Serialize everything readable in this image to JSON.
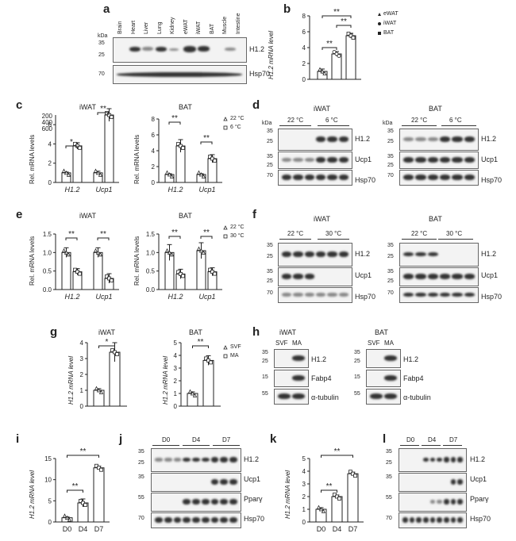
{
  "panels": {
    "a": {
      "label": "a",
      "tissues": [
        "Brain",
        "Heart",
        "Liver",
        "Lung",
        "Kidney",
        "eWAT",
        "iWAT",
        "BAT",
        "Muscle",
        "Intestine"
      ],
      "kda": "kDa",
      "markers": [
        "35",
        "25",
        "70"
      ],
      "rows": [
        "H1.2",
        "Hsp70"
      ]
    },
    "b": {
      "label": "b",
      "ylabel": "H1.2 mRNA level",
      "ticks": [
        "0",
        "2",
        "4",
        "6",
        "8"
      ],
      "legend": [
        "eWAT",
        "iWAT",
        "BAT"
      ],
      "sig": [
        "**",
        "**",
        "**"
      ]
    },
    "c": {
      "label": "c",
      "iwat": "iWAT",
      "bat": "BAT",
      "ylabel": "Rel. mRNA levels",
      "iwat_ticks": [
        "0",
        "2",
        "4",
        "6",
        "200",
        "400",
        "600"
      ],
      "bat_ticks": [
        "0",
        "2",
        "4",
        "6",
        "8"
      ],
      "x": [
        "H1.2",
        "Ucp1"
      ],
      "legend": [
        "22 °C",
        "6 °C"
      ],
      "sig_iwat": [
        "*",
        "**"
      ],
      "sig_bat": [
        "**",
        "**"
      ]
    },
    "d": {
      "label": "d",
      "iwat": "iWAT",
      "bat": "BAT",
      "kda": "kDa",
      "cond": [
        "22 °C",
        "6 °C"
      ],
      "rows": [
        "H1.2",
        "Ucp1",
        "Hsp70"
      ],
      "markers": [
        "35",
        "25",
        "35",
        "25",
        "70"
      ]
    },
    "e": {
      "label": "e",
      "iwat": "iWAT",
      "bat": "BAT",
      "ylabel": "Rel. mRNA levels",
      "ticks": [
        "0.0",
        "0.5",
        "1.0",
        "1.5"
      ],
      "x": [
        "H1.2",
        "Ucp1"
      ],
      "legend": [
        "22 °C",
        "30 °C"
      ],
      "sig": [
        "**",
        "**"
      ]
    },
    "f": {
      "label": "f",
      "iwat": "iWAT",
      "bat": "BAT",
      "cond": [
        "22 °C",
        "30 °C"
      ],
      "rows": [
        "H1.2",
        "Ucp1",
        "Hsp70"
      ],
      "markers": [
        "35",
        "25",
        "35",
        "25",
        "70"
      ]
    },
    "g": {
      "label": "g",
      "iwat": "iWAT",
      "bat": "BAT",
      "ylabel": "H1.2 mRNA level",
      "iwat_ticks": [
        "0",
        "1",
        "2",
        "3",
        "4"
      ],
      "bat_ticks": [
        "0",
        "1",
        "2",
        "3",
        "4",
        "5"
      ],
      "legend": [
        "SVF",
        "MA"
      ],
      "sig_iwat": "*",
      "sig_bat": "**"
    },
    "h": {
      "label": "h",
      "iwat": "iWAT",
      "bat": "BAT",
      "cols": [
        "SVF",
        "MA"
      ],
      "rows": [
        "H1.2",
        "Fabp4",
        "α-tubulin"
      ],
      "markers": [
        "35",
        "25",
        "15",
        "55"
      ]
    },
    "i": {
      "label": "i",
      "ylabel": "H1.2 mRNA level",
      "ticks": [
        "0",
        "5",
        "10",
        "15"
      ],
      "x": [
        "D0",
        "D4",
        "D7"
      ],
      "sig": [
        "**",
        "**"
      ]
    },
    "j": {
      "label": "j",
      "days": [
        "D0",
        "D4",
        "D7"
      ],
      "rows": [
        "H1.2",
        "Ucp1",
        "Pparγ",
        "Hsp70"
      ],
      "markers": [
        "35",
        "25",
        "35",
        "55",
        "70"
      ]
    },
    "k": {
      "label": "k",
      "ylabel": "H1.2 mRNA level",
      "ticks": [
        "0",
        "1",
        "2",
        "3",
        "4",
        "5"
      ],
      "x": [
        "D0",
        "D4",
        "D7"
      ],
      "sig": [
        "**",
        "**"
      ]
    },
    "l": {
      "label": "l",
      "days": [
        "D0",
        "D4",
        "D7"
      ],
      "rows": [
        "H1.2",
        "Ucp1",
        "Pparγ",
        "Hsp70"
      ],
      "markers": [
        "35",
        "25",
        "35",
        "55",
        "70"
      ]
    }
  },
  "chart_data": [
    {
      "panel": "b",
      "type": "bar",
      "categories": [
        "eWAT",
        "iWAT",
        "BAT"
      ],
      "values": [
        1.0,
        3.2,
        5.5
      ],
      "ylabel": "H1.2 mRNA level",
      "ylim": [
        0,
        8
      ]
    },
    {
      "panel": "c-iWAT",
      "type": "bar",
      "categories": [
        "H1.2",
        "Ucp1"
      ],
      "series": [
        {
          "name": "22 °C",
          "values": [
            1.0,
            1.0
          ]
        },
        {
          "name": "6 °C",
          "values": [
            3.8,
            380
          ]
        }
      ],
      "ylabel": "Rel. mRNA levels"
    },
    {
      "panel": "c-BAT",
      "type": "bar",
      "categories": [
        "H1.2",
        "Ucp1"
      ],
      "series": [
        {
          "name": "22 °C",
          "values": [
            1.0,
            1.0
          ]
        },
        {
          "name": "6 °C",
          "values": [
            4.6,
            3.0
          ]
        }
      ],
      "ylim": [
        0,
        8
      ]
    },
    {
      "panel": "e-iWAT",
      "type": "bar",
      "categories": [
        "H1.2",
        "Ucp1"
      ],
      "series": [
        {
          "name": "22 °C",
          "values": [
            1.0,
            1.0
          ]
        },
        {
          "name": "30 °C",
          "values": [
            0.48,
            0.3
          ]
        }
      ],
      "ylabel": "Rel. mRNA levels",
      "ylim": [
        0,
        1.5
      ]
    },
    {
      "panel": "e-BAT",
      "type": "bar",
      "categories": [
        "H1.2",
        "Ucp1"
      ],
      "series": [
        {
          "name": "22 °C",
          "values": [
            1.0,
            1.05
          ]
        },
        {
          "name": "30 °C",
          "values": [
            0.42,
            0.48
          ]
        }
      ],
      "ylim": [
        0,
        1.5
      ]
    },
    {
      "panel": "g-iWAT",
      "type": "bar",
      "categories": [
        "SVF",
        "MA"
      ],
      "values": [
        1.0,
        3.4
      ],
      "ylabel": "H1.2 mRNA level",
      "ylim": [
        0,
        4
      ]
    },
    {
      "panel": "g-BAT",
      "type": "bar",
      "categories": [
        "SVF",
        "MA"
      ],
      "values": [
        1.0,
        3.6
      ],
      "ylabel": "H1.2 mRNA level",
      "ylim": [
        0,
        5
      ]
    },
    {
      "panel": "i",
      "type": "bar",
      "categories": [
        "D0",
        "D4",
        "D7"
      ],
      "values": [
        1.0,
        4.5,
        12.8
      ],
      "ylabel": "H1.2 mRNA level",
      "ylim": [
        0,
        15
      ]
    },
    {
      "panel": "k",
      "type": "bar",
      "categories": [
        "D0",
        "D4",
        "D7"
      ],
      "values": [
        1.0,
        2.0,
        3.8
      ],
      "ylabel": "H1.2 mRNA level",
      "ylim": [
        0,
        5
      ]
    }
  ]
}
